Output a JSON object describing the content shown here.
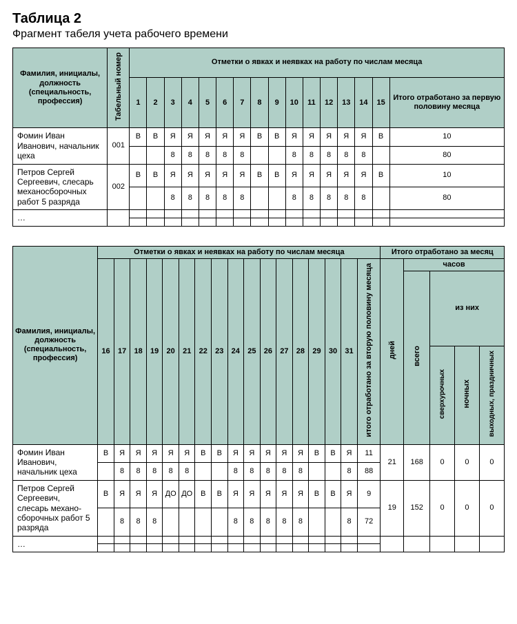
{
  "title": "Таблица 2",
  "subtitle": "Фрагмент табеля учета рабочего времени",
  "colors": {
    "header_bg": "#b0cfc7",
    "border": "#000000",
    "bg": "#ffffff",
    "text": "#000000"
  },
  "t1": {
    "h_name": "Фамилия, инициалы, должность (специальность, профессия)",
    "h_tabnum": "Табельный номер",
    "h_marks": "Отметки о явках и неявках на работу по числам месяца",
    "h_total": "Итого отработано за первую половину месяца",
    "days": [
      "1",
      "2",
      "3",
      "4",
      "5",
      "6",
      "7",
      "8",
      "9",
      "10",
      "11",
      "12",
      "13",
      "14",
      "15"
    ],
    "rows": [
      {
        "name": "Фомин Иван Иванович, начальник цеха",
        "num": "001",
        "codes": [
          "В",
          "В",
          "Я",
          "Я",
          "Я",
          "Я",
          "Я",
          "В",
          "В",
          "Я",
          "Я",
          "Я",
          "Я",
          "Я",
          "В"
        ],
        "hours": [
          "",
          "",
          "8",
          "8",
          "8",
          "8",
          "8",
          "",
          "",
          "8",
          "8",
          "8",
          "8",
          "8",
          ""
        ],
        "total_codes": "10",
        "total_hours": "80"
      },
      {
        "name": "Петров Сергей Сергеевич, слесарь механо­сборочных работ 5 разряда",
        "num": "002",
        "codes": [
          "В",
          "В",
          "Я",
          "Я",
          "Я",
          "Я",
          "Я",
          "В",
          "В",
          "Я",
          "Я",
          "Я",
          "Я",
          "Я",
          "В"
        ],
        "hours": [
          "",
          "",
          "8",
          "8",
          "8",
          "8",
          "8",
          "",
          "",
          "8",
          "8",
          "8",
          "8",
          "8",
          ""
        ],
        "total_codes": "10",
        "total_hours": "80"
      },
      {
        "name": "…",
        "num": "",
        "codes": [
          "",
          "",
          "",
          "",
          "",
          "",
          "",
          "",
          "",
          "",
          "",
          "",
          "",
          "",
          ""
        ],
        "hours": [
          "",
          "",
          "",
          "",
          "",
          "",
          "",
          "",
          "",
          "",
          "",
          "",
          "",
          "",
          ""
        ],
        "total_codes": "",
        "total_hours": ""
      }
    ]
  },
  "t2": {
    "h_name": "Фамилия, инициалы, должность (специальность, профессия)",
    "h_marks": "Отметки о явках и неявках на работу по числам месяца",
    "h_monthtotal": "Итого отработано за месяц",
    "h_half": "итого отработано за вторую половину месяца",
    "h_days": "дней",
    "h_hours": "часов",
    "h_ofthem": "из них",
    "h_total": "всего",
    "h_over": "сверхурочных",
    "h_night": "ночных",
    "h_holiday": "выходных, праздничных",
    "days": [
      "16",
      "17",
      "18",
      "19",
      "20",
      "21",
      "22",
      "23",
      "24",
      "25",
      "26",
      "27",
      "28",
      "29",
      "30",
      "31"
    ],
    "rows": [
      {
        "name": "Фомин Иван Иванович, начальник цеха",
        "codes": [
          "В",
          "Я",
          "Я",
          "Я",
          "Я",
          "Я",
          "В",
          "В",
          "Я",
          "Я",
          "Я",
          "Я",
          "Я",
          "В",
          "В",
          "Я"
        ],
        "hours": [
          "",
          "8",
          "8",
          "8",
          "8",
          "8",
          "",
          "",
          "8",
          "8",
          "8",
          "8",
          "8",
          "",
          "",
          "8"
        ],
        "half_codes": "11",
        "half_hours": "88",
        "days": "21",
        "total": "168",
        "over": "0",
        "night": "0",
        "holiday": "0"
      },
      {
        "name": "Петров Сергей Сергеевич, слесарь механо­сборочных работ 5 разряда",
        "codes": [
          "В",
          "Я",
          "Я",
          "Я",
          "ДО",
          "ДО",
          "В",
          "В",
          "Я",
          "Я",
          "Я",
          "Я",
          "Я",
          "В",
          "В",
          "Я"
        ],
        "hours": [
          "",
          "8",
          "8",
          "8",
          "",
          "",
          "",
          "",
          "8",
          "8",
          "8",
          "8",
          "8",
          "",
          "",
          "8"
        ],
        "half_codes": "9",
        "half_hours": "72",
        "days": "19",
        "total": "152",
        "over": "0",
        "night": "0",
        "holiday": "0"
      },
      {
        "name": "…",
        "codes": [
          "",
          "",
          "",
          "",
          "",
          "",
          "",
          "",
          "",
          "",
          "",
          "",
          "",
          "",
          "",
          ""
        ],
        "hours": [
          "",
          "",
          "",
          "",
          "",
          "",
          "",
          "",
          "",
          "",
          "",
          "",
          "",
          "",
          "",
          ""
        ],
        "half_codes": "",
        "half_hours": "",
        "days": "",
        "total": "",
        "over": "",
        "night": "",
        "holiday": ""
      }
    ]
  }
}
